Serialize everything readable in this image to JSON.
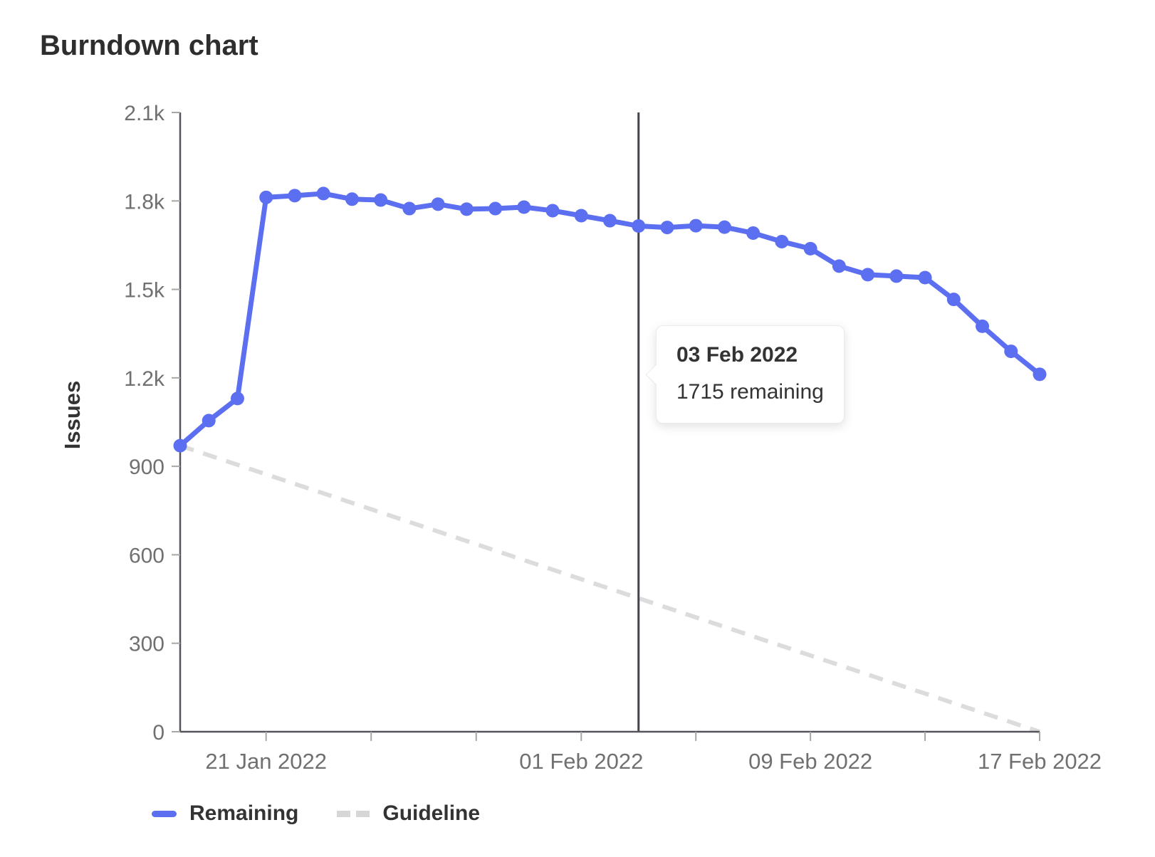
{
  "title": "Burndown chart",
  "tooltip": {
    "date": "03 Feb 2022",
    "value_text": "1715 remaining"
  },
  "legend": {
    "remaining_label": "Remaining",
    "guideline_label": "Guideline"
  },
  "colors": {
    "remaining": "#5b6ff0",
    "guideline": "#dcdcdc",
    "axis": "#54545c",
    "tick_mark": "#a7a7a7",
    "tick_text": "#707070",
    "text_dark": "#333333",
    "today_line": "#45454d"
  },
  "chart_data": {
    "type": "line",
    "title": "Burndown chart",
    "xlabel": "",
    "ylabel": "Issues",
    "ylim": [
      0,
      2100
    ],
    "grid": false,
    "legend_position": "bottom",
    "y_ticks": [
      {
        "value": 0,
        "label": "0"
      },
      {
        "value": 300,
        "label": "300"
      },
      {
        "value": 600,
        "label": "600"
      },
      {
        "value": 900,
        "label": "900"
      },
      {
        "value": 1200,
        "label": "1.2k"
      },
      {
        "value": 1500,
        "label": "1.5k"
      },
      {
        "value": 1800,
        "label": "1.8k"
      },
      {
        "value": 2100,
        "label": "2.1k"
      }
    ],
    "x_axis_labels": [
      {
        "label": "21 Jan 2022",
        "index": 3
      },
      {
        "label": "01 Feb 2022",
        "index": 14
      },
      {
        "label": "09 Feb 2022",
        "index": 22
      },
      {
        "label": "17 Feb 2022",
        "index": 30
      }
    ],
    "dates": [
      "18 Jan 2022",
      "19 Jan 2022",
      "20 Jan 2022",
      "21 Jan 2022",
      "22 Jan 2022",
      "23 Jan 2022",
      "24 Jan 2022",
      "25 Jan 2022",
      "26 Jan 2022",
      "27 Jan 2022",
      "28 Jan 2022",
      "29 Jan 2022",
      "30 Jan 2022",
      "31 Jan 2022",
      "01 Feb 2022",
      "02 Feb 2022",
      "03 Feb 2022",
      "04 Feb 2022",
      "05 Feb 2022",
      "06 Feb 2022",
      "07 Feb 2022",
      "08 Feb 2022",
      "09 Feb 2022",
      "10 Feb 2022",
      "11 Feb 2022",
      "12 Feb 2022",
      "13 Feb 2022",
      "14 Feb 2022",
      "15 Feb 2022",
      "16 Feb 2022",
      "17 Feb 2022"
    ],
    "series": [
      {
        "name": "Remaining",
        "style": "solid",
        "color": "#5b6ff0",
        "values": [
          970,
          1055,
          1130,
          1812,
          1818,
          1825,
          1806,
          1803,
          1774,
          1789,
          1772,
          1774,
          1779,
          1767,
          1750,
          1733,
          1715,
          1710,
          1716,
          1711,
          1691,
          1662,
          1638,
          1579,
          1550,
          1545,
          1540,
          1466,
          1375,
          1290,
          1212
        ]
      },
      {
        "name": "Guideline",
        "style": "dashed",
        "color": "#dcdcdc",
        "start_value": 970,
        "end_value": 0
      }
    ],
    "today_marker": {
      "index": 16,
      "date": "03 Feb 2022",
      "remaining": 1715
    }
  }
}
